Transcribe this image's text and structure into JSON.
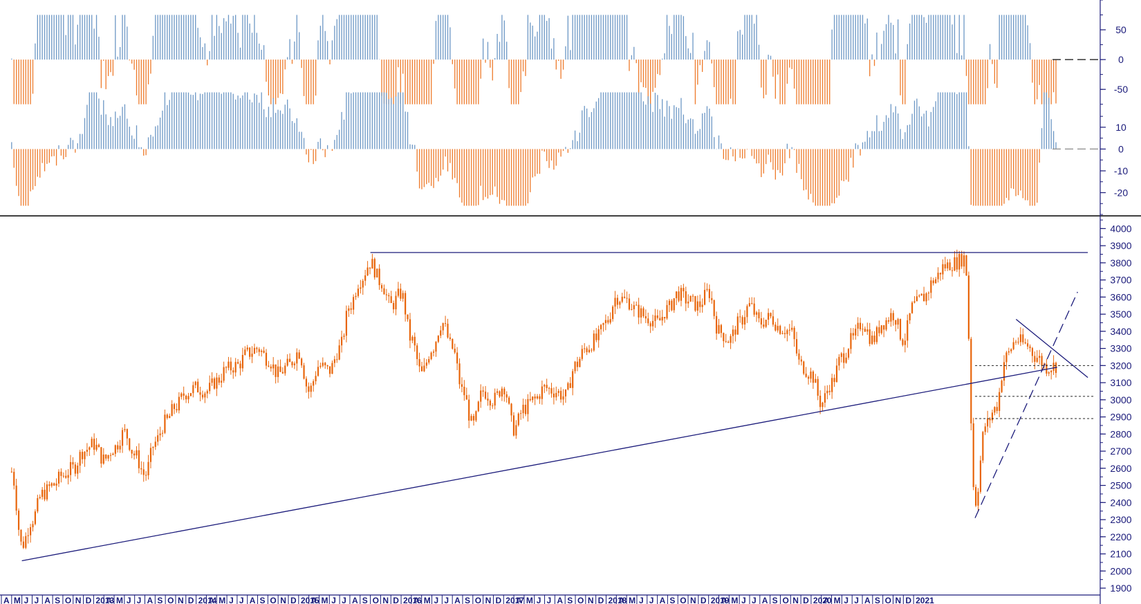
{
  "chart_data": {
    "type": "candlestick",
    "colors": {
      "price": "#e8650a",
      "osc_up": "#6c97c5",
      "osc_down": "#ee7a2a",
      "lines": "#1a1a7a",
      "axis": "#1a1a7a"
    },
    "grid": false,
    "panels": {
      "oscillator1": {
        "ylim": [
          -80,
          100
        ],
        "yticks": [
          50,
          0,
          -50
        ],
        "ytick_labels": [
          "50",
          "0",
          "-50"
        ]
      },
      "oscillator2": {
        "ylim": [
          -30,
          16
        ],
        "yticks": [
          10,
          0,
          -10,
          -20
        ],
        "ytick_labels": [
          "10",
          "0",
          "-10",
          "-20"
        ]
      },
      "price": {
        "ylim": [
          1880,
          4050
        ],
        "yticks": [
          1900,
          2000,
          2100,
          2200,
          2300,
          2400,
          2500,
          2600,
          2700,
          2800,
          2900,
          3000,
          3100,
          3200,
          3300,
          3400,
          3500,
          3600,
          3700,
          3800,
          3900,
          4000
        ],
        "ytick_labels": [
          "1900",
          "2000",
          "2100",
          "2200",
          "2300",
          "2400",
          "2500",
          "2600",
          "2700",
          "2800",
          "2900",
          "3000",
          "3100",
          "3200",
          "3300",
          "3400",
          "3500",
          "3600",
          "3700",
          "3800",
          "3900",
          "4000"
        ]
      }
    },
    "x_month_labels": [
      "A",
      "M",
      "J",
      "J",
      "A",
      "S",
      "O",
      "N",
      "D",
      "2013",
      "A",
      "M",
      "J",
      "J",
      "A",
      "S",
      "O",
      "N",
      "D",
      "2014",
      "A",
      "M",
      "J",
      "J",
      "A",
      "S",
      "O",
      "N",
      "D",
      "2015",
      "A",
      "M",
      "J",
      "J",
      "A",
      "S",
      "O",
      "N",
      "D",
      "2016",
      "A",
      "M",
      "J",
      "J",
      "A",
      "S",
      "O",
      "N",
      "D",
      "2017",
      "A",
      "M",
      "J",
      "J",
      "A",
      "S",
      "O",
      "N",
      "D",
      "2018",
      "A",
      "M",
      "J",
      "J",
      "A",
      "S",
      "O",
      "N",
      "D",
      "2019",
      "A",
      "M",
      "J",
      "J",
      "A",
      "S",
      "O",
      "N",
      "D",
      "2020",
      "A",
      "M",
      "J",
      "J",
      "A",
      "S",
      "O",
      "N",
      "D",
      "2021"
    ],
    "price_path": [
      [
        "2012-05",
        2580
      ],
      [
        "2012-06",
        2150
      ],
      [
        "2012-07",
        2300
      ],
      [
        "2012-08",
        2450
      ],
      [
        "2012-09",
        2500
      ],
      [
        "2012-10",
        2560
      ],
      [
        "2012-11",
        2600
      ],
      [
        "2012-12",
        2700
      ],
      [
        "2013-01",
        2740
      ],
      [
        "2013-02",
        2650
      ],
      [
        "2013-03",
        2720
      ],
      [
        "2013-04",
        2810
      ],
      [
        "2013-05",
        2680
      ],
      [
        "2013-06",
        2560
      ],
      [
        "2013-07",
        2750
      ],
      [
        "2013-08",
        2870
      ],
      [
        "2013-09",
        2960
      ],
      [
        "2013-10",
        3040
      ],
      [
        "2013-11",
        3070
      ],
      [
        "2013-12",
        3050
      ],
      [
        "2014-01",
        3110
      ],
      [
        "2014-02",
        3180
      ],
      [
        "2014-03",
        3200
      ],
      [
        "2014-04",
        3270
      ],
      [
        "2014-05",
        3300
      ],
      [
        "2014-06",
        3240
      ],
      [
        "2014-07",
        3150
      ],
      [
        "2014-08",
        3200
      ],
      [
        "2014-09",
        3280
      ],
      [
        "2014-10",
        3050
      ],
      [
        "2014-11",
        3200
      ],
      [
        "2014-12",
        3170
      ],
      [
        "2015-01",
        3300
      ],
      [
        "2015-02",
        3550
      ],
      [
        "2015-03",
        3700
      ],
      [
        "2015-04",
        3800
      ],
      [
        "2015-05",
        3690
      ],
      [
        "2015-06",
        3550
      ],
      [
        "2015-07",
        3620
      ],
      [
        "2015-08",
        3350
      ],
      [
        "2015-09",
        3150
      ],
      [
        "2015-10",
        3300
      ],
      [
        "2015-11",
        3450
      ],
      [
        "2015-12",
        3300
      ],
      [
        "2016-01",
        3050
      ],
      [
        "2016-02",
        2850
      ],
      [
        "2016-03",
        3050
      ],
      [
        "2016-04",
        3000
      ],
      [
        "2016-05",
        3080
      ],
      [
        "2016-06",
        2830
      ],
      [
        "2016-07",
        2950
      ],
      [
        "2016-08",
        3000
      ],
      [
        "2016-09",
        3070
      ],
      [
        "2016-10",
        3050
      ],
      [
        "2016-11",
        3020
      ],
      [
        "2016-12",
        3200
      ],
      [
        "2017-01",
        3300
      ],
      [
        "2017-02",
        3350
      ],
      [
        "2017-03",
        3450
      ],
      [
        "2017-04",
        3600
      ],
      [
        "2017-05",
        3580
      ],
      [
        "2017-06",
        3520
      ],
      [
        "2017-07",
        3480
      ],
      [
        "2017-08",
        3450
      ],
      [
        "2017-09",
        3530
      ],
      [
        "2017-10",
        3620
      ],
      [
        "2017-11",
        3580
      ],
      [
        "2017-12",
        3550
      ],
      [
        "2018-01",
        3630
      ],
      [
        "2018-02",
        3400
      ],
      [
        "2018-03",
        3350
      ],
      [
        "2018-04",
        3450
      ],
      [
        "2018-05",
        3550
      ],
      [
        "2018-06",
        3450
      ],
      [
        "2018-07",
        3480
      ],
      [
        "2018-08",
        3420
      ],
      [
        "2018-09",
        3400
      ],
      [
        "2018-10",
        3200
      ],
      [
        "2018-11",
        3150
      ],
      [
        "2018-12",
        2980
      ],
      [
        "2019-01",
        3100
      ],
      [
        "2019-02",
        3250
      ],
      [
        "2019-03",
        3350
      ],
      [
        "2019-04",
        3450
      ],
      [
        "2019-05",
        3350
      ],
      [
        "2019-06",
        3450
      ],
      [
        "2019-07",
        3500
      ],
      [
        "2019-08",
        3350
      ],
      [
        "2019-09",
        3550
      ],
      [
        "2019-10",
        3600
      ],
      [
        "2019-11",
        3700
      ],
      [
        "2019-12",
        3780
      ],
      [
        "2020-01",
        3800
      ],
      [
        "2020-02",
        3830
      ],
      [
        "2020-03",
        2400
      ],
      [
        "2020-04",
        2850
      ],
      [
        "2020-05",
        2950
      ],
      [
        "2020-06",
        3250
      ],
      [
        "2020-07",
        3350
      ],
      [
        "2020-08",
        3320
      ],
      [
        "2020-09",
        3250
      ],
      [
        "2020-10",
        3190
      ],
      [
        "2020-11",
        3200
      ]
    ],
    "trendlines": [
      {
        "style": "solid",
        "from": [
          "2012-06",
          2060
        ],
        "to": [
          "2020-11",
          3190
        ]
      },
      {
        "style": "solid",
        "from": [
          "2015-04",
          3860
        ],
        "to": [
          "2021-02",
          3860
        ]
      },
      {
        "style": "solid",
        "from": [
          "2020-07",
          3470
        ],
        "to": [
          "2021-02",
          3130
        ]
      },
      {
        "style": "dashed",
        "from": [
          "2020-03",
          2310
        ],
        "to": [
          "2021-01",
          3630
        ]
      }
    ],
    "horizontal_levels": [
      {
        "style": "dotted",
        "from": "2020-03",
        "value": 3200
      },
      {
        "style": "dotted",
        "from": "2020-03",
        "value": 3020
      },
      {
        "style": "dotted",
        "from": "2020-03",
        "value": 2890
      }
    ]
  }
}
